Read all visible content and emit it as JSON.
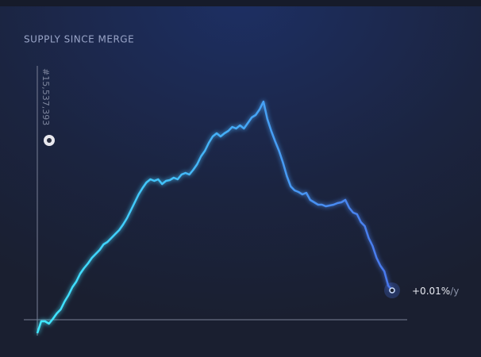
{
  "chart_data": {
    "type": "line",
    "title": "SUPPLY SINCE MERGE",
    "block_label": "#15,537,393",
    "end_label": "+0.01%",
    "end_unit": "/y",
    "color_start": "#3fe9ff",
    "color_end": "#4a78ee",
    "ylim": [
      -20,
      320
    ],
    "values": [
      -17,
      -2,
      -2,
      -5,
      1,
      8,
      13,
      23,
      31,
      41,
      48,
      58,
      65,
      71,
      78,
      83,
      88,
      95,
      98,
      103,
      108,
      113,
      120,
      128,
      138,
      148,
      158,
      166,
      173,
      177,
      175,
      177,
      171,
      175,
      176,
      179,
      177,
      183,
      185,
      183,
      189,
      196,
      206,
      213,
      223,
      231,
      235,
      231,
      235,
      238,
      243,
      241,
      245,
      241,
      248,
      255,
      258,
      265,
      275,
      253,
      238,
      225,
      213,
      198,
      181,
      168,
      163,
      161,
      158,
      160,
      151,
      148,
      145,
      145,
      143,
      144,
      145,
      147,
      148,
      151,
      141,
      135,
      133,
      123,
      118,
      103,
      93,
      78,
      68,
      61,
      43,
      37
    ]
  }
}
